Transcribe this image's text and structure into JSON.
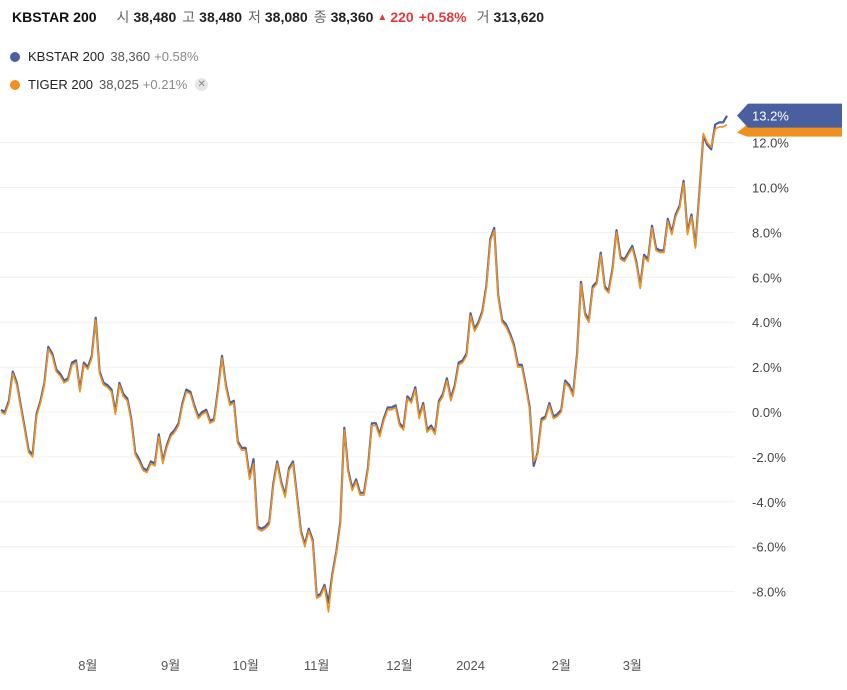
{
  "header": {
    "title": "KBSTAR 200",
    "open_label": "시",
    "open": "38,480",
    "high_label": "고",
    "high": "38,480",
    "low_label": "저",
    "low": "38,080",
    "close_label": "종",
    "close": "38,360",
    "change": "220",
    "change_pct": "+0.58%",
    "volume_label": "거",
    "volume": "313,620"
  },
  "legend": [
    {
      "name": "KBSTAR 200",
      "price": "38,360",
      "pct": "+0.58%",
      "color": "#4a5fa0"
    },
    {
      "name": "TIGER 200",
      "price": "38,025",
      "pct": "+0.21%",
      "color": "#f0901e"
    }
  ],
  "chart_data": {
    "type": "line",
    "y_unit": "%",
    "ylim": [
      -10,
      14
    ],
    "y_ticks": [
      "12.0%",
      "10.0%",
      "8.0%",
      "6.0%",
      "4.0%",
      "2.0%",
      "0.0%",
      "-2.0%",
      "-4.0%",
      "-6.0%",
      "-8.0%"
    ],
    "x_ticks": [
      {
        "label": "8월",
        "index": 22
      },
      {
        "label": "9월",
        "index": 43
      },
      {
        "label": "10월",
        "index": 62
      },
      {
        "label": "11월",
        "index": 80
      },
      {
        "label": "12월",
        "index": 101
      },
      {
        "label": "2024",
        "index": 119
      },
      {
        "label": "2월",
        "index": 142
      },
      {
        "label": "3월",
        "index": 160
      }
    ],
    "last_value_label": "13.2%",
    "series": [
      {
        "name": "KBSTAR 200",
        "color": "#4a5fa0",
        "values": [
          0.1,
          0.0,
          0.5,
          1.8,
          1.3,
          0.3,
          -0.7,
          -1.7,
          -1.9,
          -0.1,
          0.5,
          1.3,
          2.9,
          2.6,
          1.9,
          1.7,
          1.4,
          1.5,
          2.2,
          2.3,
          1.0,
          2.2,
          2.0,
          2.5,
          4.2,
          1.8,
          1.3,
          1.2,
          1.0,
          0.0,
          1.3,
          0.8,
          0.6,
          -0.3,
          -1.8,
          -2.1,
          -2.5,
          -2.6,
          -2.2,
          -2.3,
          -1.0,
          -2.2,
          -1.5,
          -1.0,
          -0.8,
          -0.5,
          0.4,
          1.0,
          0.9,
          0.3,
          -0.2,
          0.0,
          0.1,
          -0.4,
          -0.3,
          1.0,
          2.5,
          1.2,
          0.4,
          0.5,
          -1.3,
          -1.6,
          -1.6,
          -2.9,
          -2.1,
          -5.1,
          -5.2,
          -5.1,
          -4.9,
          -3.2,
          -2.2,
          -3.1,
          -3.7,
          -2.5,
          -2.2,
          -3.7,
          -5.3,
          -5.9,
          -5.2,
          -5.7,
          -8.2,
          -8.1,
          -7.7,
          -8.5,
          -7.2,
          -6.2,
          -4.9,
          -0.7,
          -2.6,
          -3.4,
          -3.0,
          -3.6,
          -3.6,
          -2.5,
          -0.5,
          -0.5,
          -1.0,
          -0.3,
          0.2,
          0.2,
          0.3,
          -0.5,
          -0.7,
          0.7,
          0.5,
          1.1,
          -0.2,
          0.4,
          -0.8,
          -0.6,
          -0.9,
          0.5,
          0.8,
          1.5,
          0.6,
          1.2,
          2.2,
          2.3,
          2.6,
          4.4,
          3.7,
          4.0,
          4.5,
          5.6,
          7.7,
          8.2,
          5.2,
          4.1,
          3.9,
          3.5,
          3.0,
          2.1,
          2.1,
          1.2,
          0.2,
          -2.4,
          -1.8,
          -0.3,
          -0.2,
          0.4,
          -0.2,
          -0.1,
          0.1,
          1.4,
          1.2,
          0.8,
          2.6,
          5.8,
          4.4,
          4.1,
          5.6,
          5.8,
          7.1,
          5.6,
          5.4,
          6.4,
          8.1,
          6.9,
          6.8,
          7.1,
          7.4,
          6.7,
          5.6,
          7.0,
          6.8,
          8.3,
          7.3,
          7.2,
          7.2,
          8.6,
          8.0,
          8.8,
          9.2,
          10.3,
          8.0,
          8.8,
          7.4,
          9.8,
          12.3,
          11.9,
          11.7,
          12.8,
          12.9,
          12.9,
          13.2
        ]
      },
      {
        "name": "TIGER 200",
        "color": "#f0901e",
        "values": [
          0.0,
          -0.1,
          0.4,
          1.7,
          1.2,
          0.2,
          -0.8,
          -1.8,
          -2.0,
          -0.2,
          0.4,
          1.2,
          2.8,
          2.5,
          1.8,
          1.6,
          1.3,
          1.4,
          2.1,
          2.2,
          0.9,
          2.1,
          1.9,
          2.4,
          4.1,
          1.7,
          1.2,
          1.1,
          0.9,
          -0.1,
          1.2,
          0.7,
          0.5,
          -0.4,
          -1.9,
          -2.2,
          -2.6,
          -2.7,
          -2.3,
          -2.4,
          -1.1,
          -2.3,
          -1.6,
          -1.1,
          -0.9,
          -0.6,
          0.3,
          0.9,
          0.8,
          0.2,
          -0.3,
          -0.1,
          0.0,
          -0.5,
          -0.4,
          0.9,
          2.4,
          1.1,
          0.3,
          0.4,
          -1.4,
          -1.7,
          -1.7,
          -3.0,
          -2.3,
          -5.2,
          -5.3,
          -5.2,
          -5.0,
          -3.3,
          -2.3,
          -3.2,
          -3.8,
          -2.6,
          -2.3,
          -3.8,
          -5.4,
          -6.0,
          -5.3,
          -5.8,
          -8.3,
          -8.2,
          -7.8,
          -8.9,
          -7.3,
          -6.3,
          -5.0,
          -0.8,
          -2.7,
          -3.5,
          -3.1,
          -3.7,
          -3.7,
          -2.6,
          -0.6,
          -0.6,
          -1.1,
          -0.4,
          0.1,
          0.1,
          0.2,
          -0.6,
          -0.8,
          0.6,
          0.4,
          1.0,
          -0.3,
          0.3,
          -0.9,
          -0.7,
          -1.0,
          0.4,
          0.7,
          1.4,
          0.5,
          1.1,
          2.1,
          2.2,
          2.5,
          4.3,
          3.6,
          3.9,
          4.4,
          5.5,
          7.6,
          8.1,
          5.1,
          4.0,
          3.8,
          3.4,
          2.9,
          2.0,
          2.0,
          1.1,
          0.1,
          -2.2,
          -1.9,
          -0.4,
          -0.3,
          0.3,
          -0.3,
          -0.2,
          0.0,
          1.3,
          1.1,
          0.7,
          2.5,
          5.7,
          4.3,
          4.0,
          5.5,
          5.7,
          7.0,
          5.5,
          5.3,
          6.3,
          8.0,
          6.8,
          6.7,
          7.0,
          7.3,
          6.6,
          5.5,
          6.9,
          6.7,
          8.2,
          7.2,
          7.1,
          7.1,
          8.5,
          7.9,
          8.7,
          9.1,
          10.2,
          7.9,
          8.7,
          7.3,
          9.7,
          12.4,
          12.0,
          11.8,
          12.6,
          12.7,
          12.7,
          12.8
        ]
      }
    ]
  }
}
